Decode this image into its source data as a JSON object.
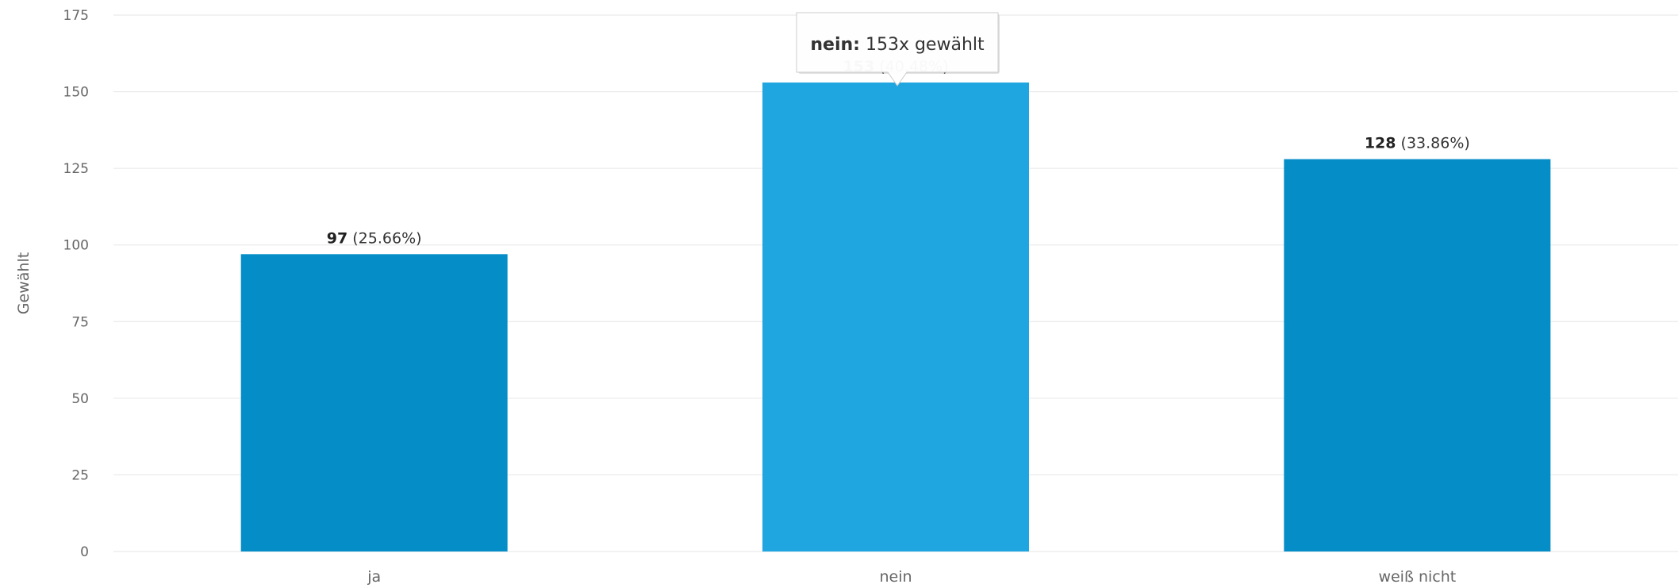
{
  "chart_data": {
    "type": "bar",
    "title": "",
    "xlabel": "",
    "ylabel": "Gewählt",
    "categories": [
      "ja",
      "nein",
      "weiß nicht"
    ],
    "values": [
      97,
      153,
      128
    ],
    "percent_labels": [
      "(25.66%)",
      "(40.48%)",
      "(33.86%)"
    ],
    "ylim": [
      0,
      175
    ],
    "yticks": [
      0,
      25,
      50,
      75,
      100,
      125,
      150,
      175
    ],
    "grid": true,
    "legend": "none",
    "colors": {
      "bar": "#058dc7",
      "bar_hover": "#1fa5df",
      "grid": "#e6e6e6",
      "axis_text": "#666666"
    },
    "hovered_index": 1,
    "tooltip": {
      "label": "nein:",
      "text": "153x gewählt"
    }
  }
}
